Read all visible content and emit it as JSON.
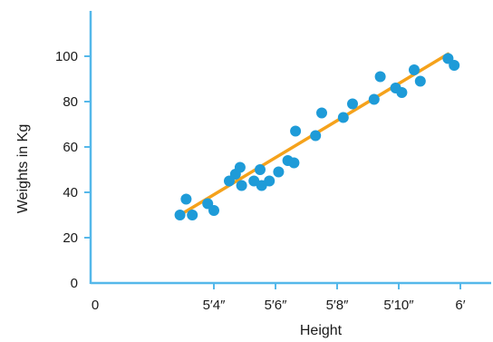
{
  "chart_data": {
    "type": "scatter",
    "xlabel": "Height",
    "ylabel": "Weights in Kg",
    "x_unit": "inches",
    "xlim": [
      60,
      73
    ],
    "ylim": [
      0,
      120
    ],
    "x_ticks": [
      {
        "value": 60,
        "label": "0"
      },
      {
        "value": 64,
        "label": "5′4″"
      },
      {
        "value": 66,
        "label": "5′6″"
      },
      {
        "value": 68,
        "label": "5′8″"
      },
      {
        "value": 70,
        "label": "5′10″"
      },
      {
        "value": 72,
        "label": "6′"
      }
    ],
    "y_ticks": [
      {
        "value": 0,
        "label": "0"
      },
      {
        "value": 20,
        "label": "20"
      },
      {
        "value": 40,
        "label": "40"
      },
      {
        "value": 60,
        "label": "60"
      },
      {
        "value": 80,
        "label": "80"
      },
      {
        "value": 100,
        "label": "100"
      }
    ],
    "points": [
      {
        "x": 62.9,
        "y": 30
      },
      {
        "x": 63.1,
        "y": 37
      },
      {
        "x": 63.3,
        "y": 30
      },
      {
        "x": 63.8,
        "y": 35
      },
      {
        "x": 64.0,
        "y": 32
      },
      {
        "x": 64.5,
        "y": 45
      },
      {
        "x": 64.7,
        "y": 48
      },
      {
        "x": 64.85,
        "y": 51
      },
      {
        "x": 64.9,
        "y": 43
      },
      {
        "x": 65.3,
        "y": 45
      },
      {
        "x": 65.5,
        "y": 50
      },
      {
        "x": 65.55,
        "y": 43
      },
      {
        "x": 65.8,
        "y": 45
      },
      {
        "x": 66.1,
        "y": 49
      },
      {
        "x": 66.4,
        "y": 54
      },
      {
        "x": 66.6,
        "y": 53
      },
      {
        "x": 66.65,
        "y": 67
      },
      {
        "x": 67.3,
        "y": 65
      },
      {
        "x": 67.5,
        "y": 75
      },
      {
        "x": 68.2,
        "y": 73
      },
      {
        "x": 68.5,
        "y": 79
      },
      {
        "x": 69.2,
        "y": 81
      },
      {
        "x": 69.4,
        "y": 91
      },
      {
        "x": 69.9,
        "y": 86
      },
      {
        "x": 70.1,
        "y": 84
      },
      {
        "x": 70.5,
        "y": 94
      },
      {
        "x": 70.7,
        "y": 89
      },
      {
        "x": 71.6,
        "y": 99
      },
      {
        "x": 71.8,
        "y": 96
      }
    ],
    "trend_line": {
      "x": [
        62.9,
        71.6
      ],
      "y": [
        30,
        101
      ],
      "color": "#f5a21b"
    },
    "point_color": "#1e9bd8",
    "axis_color": "#55b8ea",
    "grid": false
  }
}
